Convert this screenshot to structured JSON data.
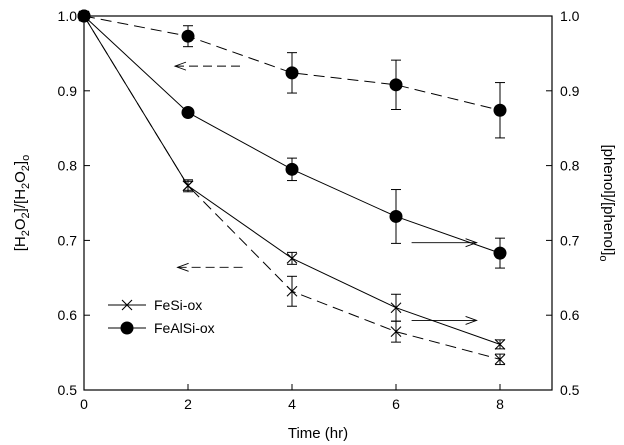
{
  "chart_data": {
    "type": "line",
    "xlabel": "Time (hr)",
    "ylabel_left": {
      "base": "[H",
      "sub1": "2",
      "mid1": "O",
      "sub2": "2",
      "mid2": "]/[H",
      "sub3": "2",
      "mid3": "O",
      "sub4": "2",
      "end": "]",
      "sub5": "o"
    },
    "ylabel_right": {
      "base": "[phenol]/[phenol]",
      "sub": "o"
    },
    "xlim": [
      0,
      9
    ],
    "ylim": [
      0.5,
      1.0
    ],
    "x_ticks": [
      "0",
      "2",
      "4",
      "6",
      "8"
    ],
    "y_ticks_left": [
      "0.5",
      "0.6",
      "0.7",
      "0.8",
      "0.9",
      "1.0"
    ],
    "y_ticks_right": [
      "0.5",
      "0.6",
      "0.7",
      "0.8",
      "0.9",
      "1.0"
    ],
    "legend": {
      "position": "bottom-left",
      "entries": [
        {
          "label": "FeSi-ox",
          "marker": "x"
        },
        {
          "label": "FeAlSi-ox",
          "marker": "circle"
        }
      ]
    },
    "series": [
      {
        "legend": "FeSi-ox",
        "quantity": "H2O2",
        "marker": "x",
        "line": "dashed",
        "x": [
          0,
          2,
          4,
          6,
          8
        ],
        "y": [
          1.0,
          0.773,
          0.632,
          0.578,
          0.541
        ],
        "err": [
          0,
          0.008,
          0.02,
          0.014,
          0.007
        ]
      },
      {
        "legend": "FeSi-ox",
        "quantity": "phenol",
        "marker": "x",
        "line": "solid",
        "x": [
          0,
          2,
          4,
          6,
          8
        ],
        "y": [
          1.0,
          0.773,
          0.676,
          0.61,
          0.561
        ],
        "err": [
          0,
          0.006,
          0.008,
          0.018,
          0.006
        ]
      },
      {
        "legend": "FeAlSi-ox",
        "quantity": "H2O2",
        "marker": "circle",
        "line": "dashed",
        "x": [
          0,
          2,
          4,
          6,
          8
        ],
        "y": [
          1.0,
          0.973,
          0.924,
          0.908,
          0.874
        ],
        "err": [
          0,
          0.014,
          0.027,
          0.033,
          0.037
        ]
      },
      {
        "legend": "FeAlSi-ox",
        "quantity": "phenol",
        "marker": "circle",
        "line": "solid",
        "x": [
          0,
          2,
          4,
          6,
          8
        ],
        "y": [
          1.0,
          0.871,
          0.795,
          0.732,
          0.683
        ],
        "err": [
          0,
          0.005,
          0.015,
          0.036,
          0.02
        ]
      }
    ],
    "annotations": [
      {
        "type": "arrow",
        "direction": "left",
        "points_to_axis": "left",
        "line": "dashed",
        "from": [
          3.0,
          0.933
        ],
        "to": [
          1.75,
          0.933
        ]
      },
      {
        "type": "arrow",
        "direction": "right",
        "points_to_axis": "right",
        "line": "solid",
        "from": [
          6.3,
          0.697
        ],
        "to": [
          7.55,
          0.697
        ]
      },
      {
        "type": "arrow",
        "direction": "left",
        "points_to_axis": "left",
        "line": "dashed",
        "from": [
          3.05,
          0.664
        ],
        "to": [
          1.8,
          0.664
        ]
      },
      {
        "type": "arrow",
        "direction": "right",
        "points_to_axis": "right",
        "line": "solid",
        "from": [
          6.3,
          0.593
        ],
        "to": [
          7.55,
          0.593
        ]
      }
    ]
  }
}
